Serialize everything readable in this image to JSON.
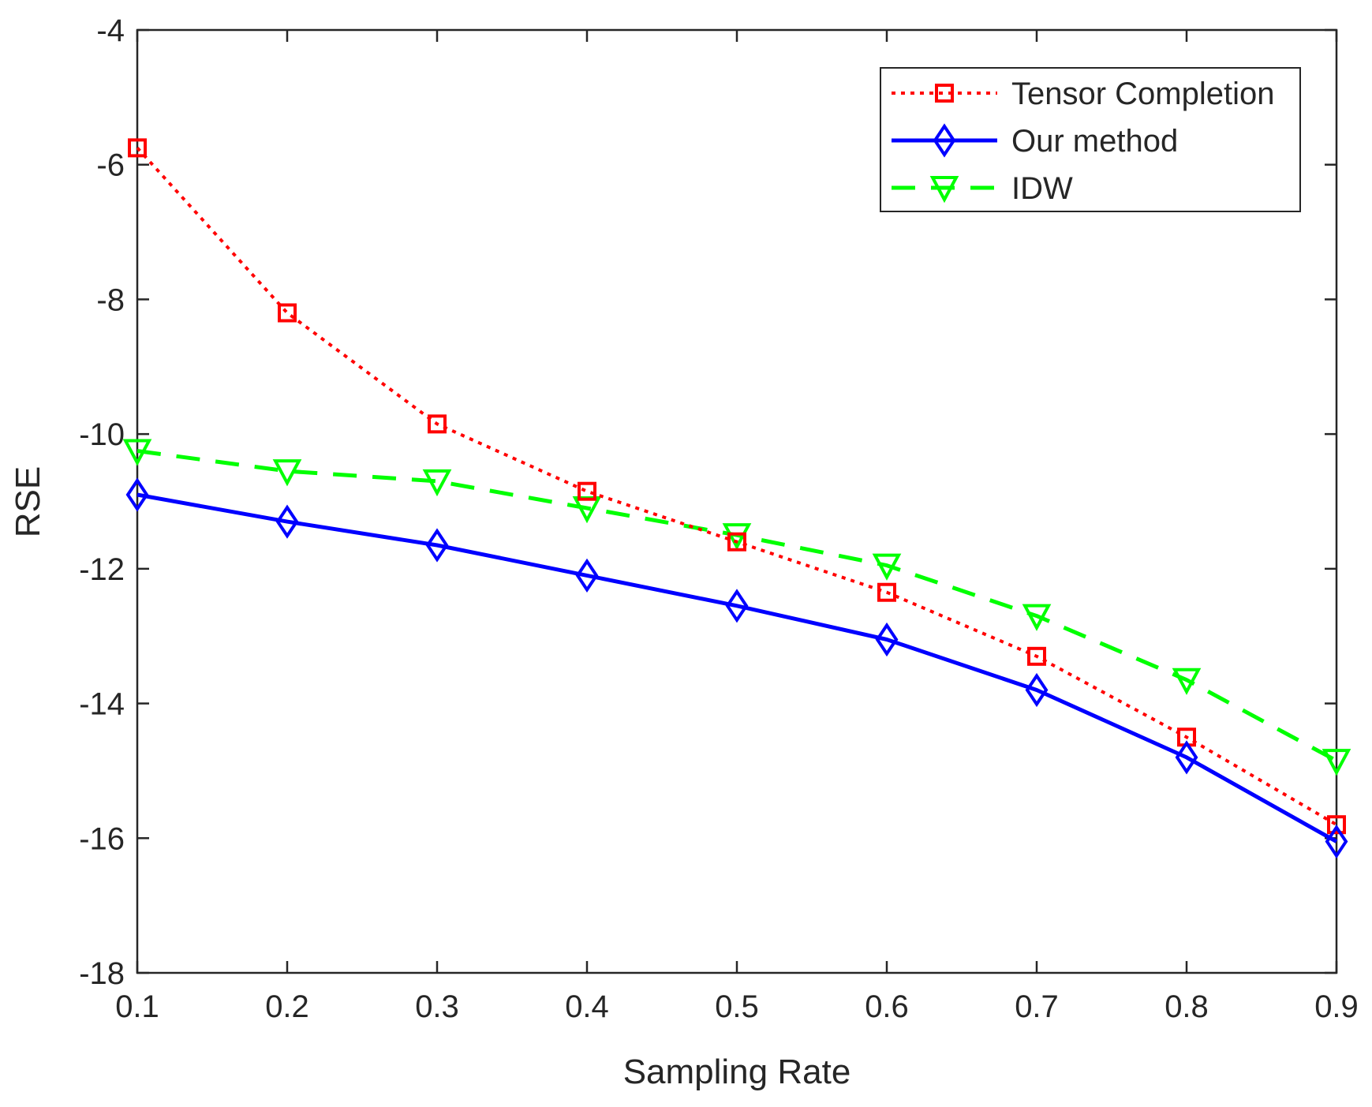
{
  "chart_data": {
    "type": "line",
    "title": "",
    "xlabel": "Sampling Rate",
    "ylabel": "RSE",
    "x": [
      0.1,
      0.2,
      0.3,
      0.4,
      0.5,
      0.6,
      0.7,
      0.8,
      0.9
    ],
    "xlim": [
      0.1,
      0.9
    ],
    "ylim": [
      -18,
      -4
    ],
    "x_ticks": [
      "0.1",
      "0.2",
      "0.3",
      "0.4",
      "0.5",
      "0.6",
      "0.7",
      "0.8",
      "0.9"
    ],
    "y_ticks": [
      "-4",
      "-6",
      "-8",
      "-10",
      "-12",
      "-14",
      "-16",
      "-18"
    ],
    "grid": false,
    "legend_position": "top-right",
    "series": [
      {
        "name": "Tensor Completion",
        "color": "#ff0000",
        "line_style": "dotted",
        "marker": "square",
        "values": [
          -5.75,
          -8.2,
          -9.85,
          -10.85,
          -11.6,
          -12.35,
          -13.3,
          -14.5,
          -15.8
        ]
      },
      {
        "name": "Our method",
        "color": "#0000ff",
        "line_style": "solid",
        "marker": "diamond",
        "values": [
          -10.9,
          -11.3,
          -11.65,
          -12.1,
          -12.55,
          -13.05,
          -13.8,
          -14.8,
          -16.05
        ]
      },
      {
        "name": "IDW",
        "color": "#00ff00",
        "line_style": "dashed",
        "marker": "triangle-down",
        "values": [
          -10.25,
          -10.55,
          -10.7,
          -11.1,
          -11.5,
          -11.95,
          -12.7,
          -13.65,
          -14.85
        ]
      }
    ]
  }
}
